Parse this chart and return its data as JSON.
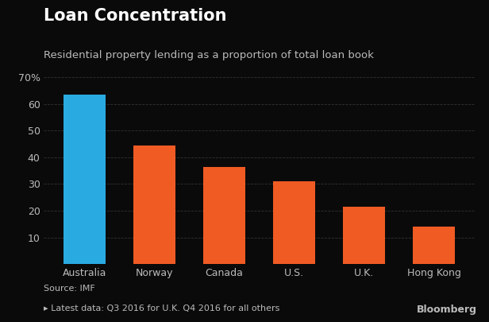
{
  "title": "Loan Concentration",
  "subtitle": "Residential property lending as a proportion of total loan book",
  "categories": [
    "Australia",
    "Norway",
    "Canada",
    "U.S.",
    "U.K.",
    "Hong Kong"
  ],
  "values": [
    63.5,
    44.5,
    36.5,
    31.0,
    21.5,
    14.0
  ],
  "bar_colors": [
    "#29ABE2",
    "#F05A23",
    "#F05A23",
    "#F05A23",
    "#F05A23",
    "#F05A23"
  ],
  "background_color": "#0a0a0a",
  "text_color": "#BBBBBB",
  "grid_color": "#333333",
  "ylim": [
    0,
    70
  ],
  "yticks": [
    0,
    10,
    20,
    30,
    40,
    50,
    60,
    70
  ],
  "source_line1": "Source: IMF",
  "source_line2": "▸ Latest data: Q3 2016 for U.K. Q4 2016 for all others",
  "bloomberg_text": "Bloomberg",
  "title_fontsize": 15,
  "subtitle_fontsize": 9.5,
  "tick_fontsize": 9,
  "source_fontsize": 8,
  "bar_width": 0.6
}
